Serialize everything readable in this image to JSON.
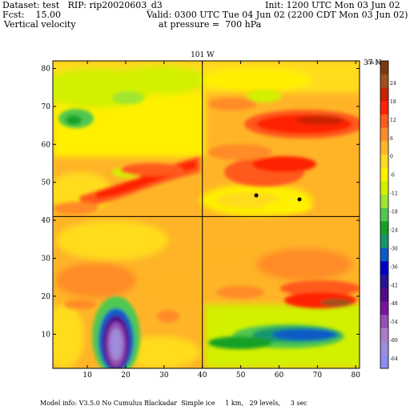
{
  "header": {
    "dataset": "Dataset: test   RIP: rip20020603_d3",
    "init": "Init: 1200 UTC Mon 03 Jun 02",
    "fcst": "Fcst:    15.00",
    "valid": "Valid: 0300 UTC Tue 04 Jun 02 (2200 CDT Mon 03 Jun 02)",
    "field": "Vertical velocity",
    "pressure": "at pressure =  700 hPa"
  },
  "footer": {
    "model_info": "Model info: V3.5.0 No Cumulus Blackadar  Simple ice     1 km,   29 levels,     3 sec"
  },
  "chart_data": {
    "type": "heatmap",
    "title": "Vertical velocity",
    "x_ticks": [
      10,
      20,
      30,
      40,
      50,
      60,
      70,
      80
    ],
    "y_ticks": [
      10,
      20,
      30,
      40,
      50,
      60,
      70,
      80
    ],
    "xlim": [
      1,
      81
    ],
    "ylim": [
      1,
      82
    ],
    "grid_lines": [
      {
        "label": "101 W",
        "orientation": "vertical",
        "x": 40
      },
      {
        "label": "37 N",
        "orientation": "horizontal",
        "y": 41
      }
    ],
    "colorbar": {
      "unit": "cm s⁻¹",
      "tick_labels": [
        "24",
        "18",
        "12",
        "6",
        "0",
        "-6",
        "-12",
        "-18",
        "-24",
        "-30",
        "-36",
        "-42",
        "-48",
        "-54",
        "-60",
        "-64"
      ],
      "colors": [
        "#7a3a10",
        "#a0501e",
        "#cc2200",
        "#ff2200",
        "#ff5a1e",
        "#ff8c28",
        "#ffb428",
        "#ffdc1e",
        "#fff000",
        "#d2f000",
        "#a0e632",
        "#50c850",
        "#14a028",
        "#14966e",
        "#0a5ac8",
        "#0000c8",
        "#281496",
        "#500a8c",
        "#7814a0",
        "#9650b4",
        "#aa7dc8",
        "#a08cdc",
        "#8c8cf0"
      ]
    },
    "features": [
      {
        "name": "updraft band north",
        "x_range": [
          50,
          80
        ],
        "y_range": [
          56,
          68
        ],
        "level_cm_s": 12
      },
      {
        "name": "updraft band southeast",
        "x_range": [
          55,
          80
        ],
        "y_range": [
          15,
          22
        ],
        "level_cm_s": 18
      },
      {
        "name": "diagonal updraft band",
        "x_range": [
          10,
          40
        ],
        "y_range": [
          45,
          58
        ],
        "level_cm_s": 6
      },
      {
        "name": "downdraft core",
        "x_range": [
          13,
          21
        ],
        "y_range": [
          3,
          15
        ],
        "level_cm_s": -60
      },
      {
        "name": "downdraft band",
        "x_range": [
          40,
          80
        ],
        "y_range": [
          6,
          12
        ],
        "level_cm_s": -36
      }
    ]
  }
}
